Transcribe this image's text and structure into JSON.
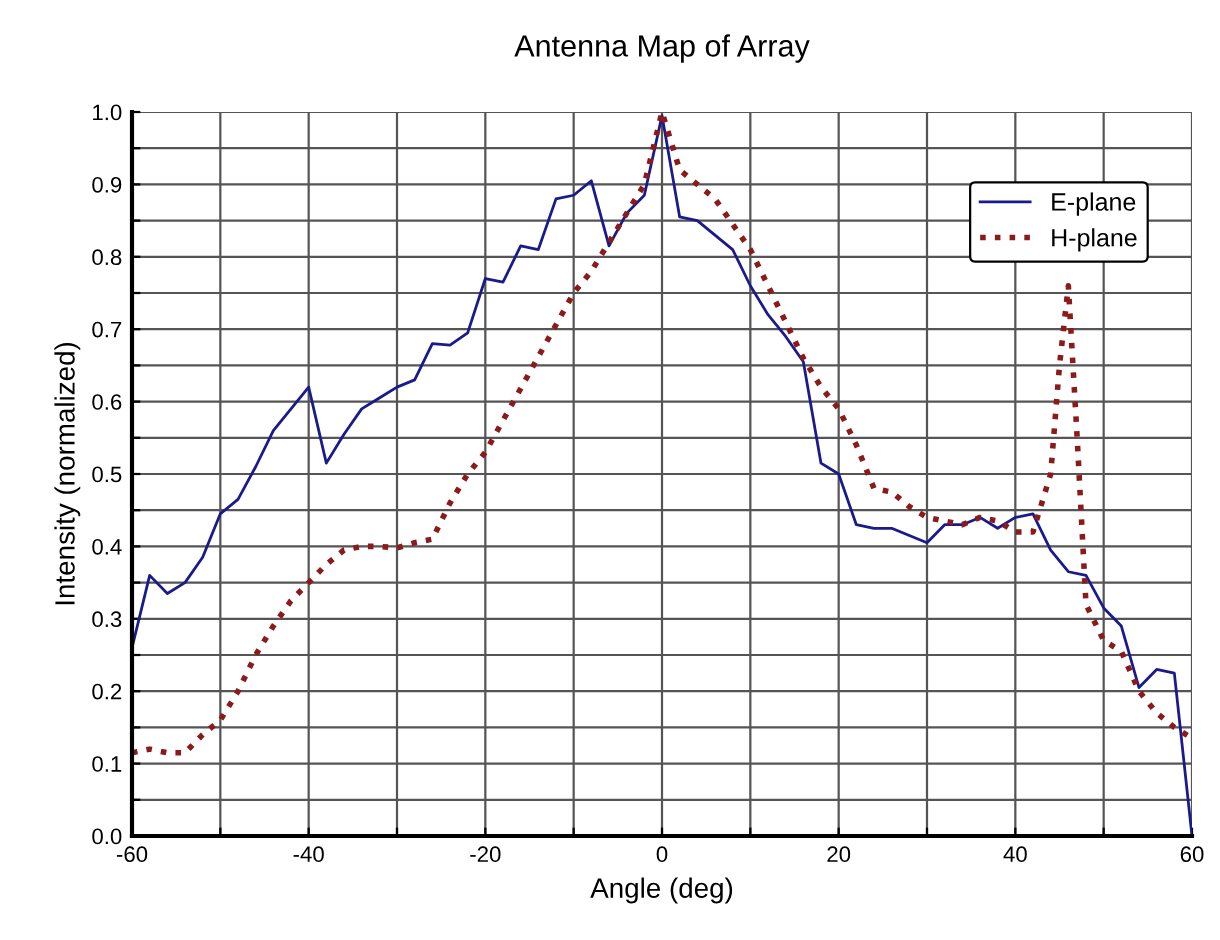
{
  "chart_data": {
    "type": "line",
    "title": "Antenna Map of Array",
    "xlabel": "Angle (deg)",
    "ylabel": "Intensity (normalized)",
    "xlim": [
      -60,
      60
    ],
    "ylim": [
      0,
      1
    ],
    "xticks": [
      -60,
      {
        "value": -50,
        "label": null
      },
      -40,
      {
        "value": -30,
        "label": null
      },
      -20,
      {
        "value": -10,
        "label": null
      },
      0,
      {
        "value": 10,
        "label": null
      },
      20,
      {
        "value": 30,
        "label": null
      },
      40,
      {
        "value": 50,
        "label": null
      },
      60
    ],
    "yticks": [
      {
        "value": 0,
        "label": "0.0"
      },
      {
        "value": 0.05,
        "label": null
      },
      {
        "value": 0.1,
        "label": "0.1"
      },
      {
        "value": 0.15,
        "label": null
      },
      {
        "value": 0.2,
        "label": "0.2"
      },
      {
        "value": 0.25,
        "label": null
      },
      {
        "value": 0.3,
        "label": "0.3"
      },
      {
        "value": 0.35,
        "label": null
      },
      {
        "value": 0.4,
        "label": "0.4"
      },
      {
        "value": 0.45,
        "label": null
      },
      {
        "value": 0.5,
        "label": "0.5"
      },
      {
        "value": 0.55,
        "label": null
      },
      {
        "value": 0.6,
        "label": "0.6"
      },
      {
        "value": 0.65,
        "label": null
      },
      {
        "value": 0.7,
        "label": "0.7"
      },
      {
        "value": 0.75,
        "label": null
      },
      {
        "value": 0.8,
        "label": "0.8"
      },
      {
        "value": 0.85,
        "label": null
      },
      {
        "value": 0.9,
        "label": "0.9"
      },
      {
        "value": 0.95,
        "label": null
      },
      {
        "value": 1,
        "label": "1.0"
      }
    ],
    "grid": true,
    "legend": "top right",
    "series": [
      {
        "name": "E-plane",
        "color": "#1a1a8c",
        "line_style": "solid",
        "x": [
          -60,
          -58,
          -56,
          -54,
          -52,
          -50,
          -48,
          -46,
          -44,
          -42,
          -40,
          -38,
          -36,
          -34,
          -32,
          -30,
          -28,
          -26,
          -24,
          -22,
          -20,
          -18,
          -16,
          -14,
          -12,
          -10,
          -8,
          -6,
          -4,
          -2,
          0,
          2,
          4,
          6,
          8,
          10,
          12,
          14,
          16,
          18,
          20,
          22,
          24,
          26,
          28,
          30,
          32,
          34,
          36,
          38,
          40,
          42,
          44,
          46,
          48,
          50,
          52,
          54,
          56,
          58,
          60
        ],
        "values": [
          0.26,
          0.36,
          0.335,
          0.35,
          0.385,
          0.445,
          0.465,
          0.51,
          0.56,
          0.59,
          0.62,
          0.515,
          0.555,
          0.59,
          0.605,
          0.62,
          0.63,
          0.68,
          0.678,
          0.695,
          0.77,
          0.765,
          0.815,
          0.81,
          0.88,
          0.885,
          0.905,
          0.815,
          0.86,
          0.885,
          0.995,
          0.855,
          0.85,
          0.83,
          0.81,
          0.76,
          0.72,
          0.69,
          0.655,
          0.515,
          0.5,
          0.43,
          0.425,
          0.425,
          0.415,
          0.405,
          0.43,
          0.43,
          0.44,
          0.425,
          0.44,
          0.445,
          0.395,
          0.365,
          0.36,
          0.315,
          0.29,
          0.205,
          0.23,
          0.225,
          0.0
        ]
      },
      {
        "name": "H-plane",
        "color": "#8b1a1a",
        "line_style": "dotted",
        "x": [
          -60,
          -58,
          -56,
          -54,
          -52,
          -50,
          -48,
          -46,
          -44,
          -42,
          -40,
          -38,
          -36,
          -34,
          -32,
          -30,
          -28,
          -26,
          -24,
          -22,
          -20,
          -10,
          -8,
          -6,
          -4,
          -2,
          0,
          2,
          4,
          6,
          8,
          10,
          12,
          14,
          16,
          18,
          20,
          22,
          24,
          26,
          28,
          30,
          32,
          34,
          36,
          38,
          40,
          42,
          44,
          45,
          46,
          47,
          48,
          50,
          52,
          54,
          56,
          58,
          60
        ],
        "values": [
          0.115,
          0.12,
          0.115,
          0.115,
          0.14,
          0.16,
          0.2,
          0.25,
          0.29,
          0.325,
          0.35,
          0.375,
          0.395,
          0.4,
          0.4,
          0.398,
          0.405,
          0.41,
          0.46,
          0.5,
          0.53,
          0.75,
          0.78,
          0.82,
          0.86,
          0.9,
          1.0,
          0.92,
          0.9,
          0.88,
          0.845,
          0.81,
          0.76,
          0.71,
          0.66,
          0.62,
          0.59,
          0.54,
          0.48,
          0.475,
          0.455,
          0.44,
          0.435,
          0.43,
          0.44,
          0.435,
          0.42,
          0.42,
          0.5,
          0.65,
          0.76,
          0.55,
          0.32,
          0.27,
          0.255,
          0.2,
          0.17,
          0.15,
          0.135
        ]
      }
    ]
  }
}
